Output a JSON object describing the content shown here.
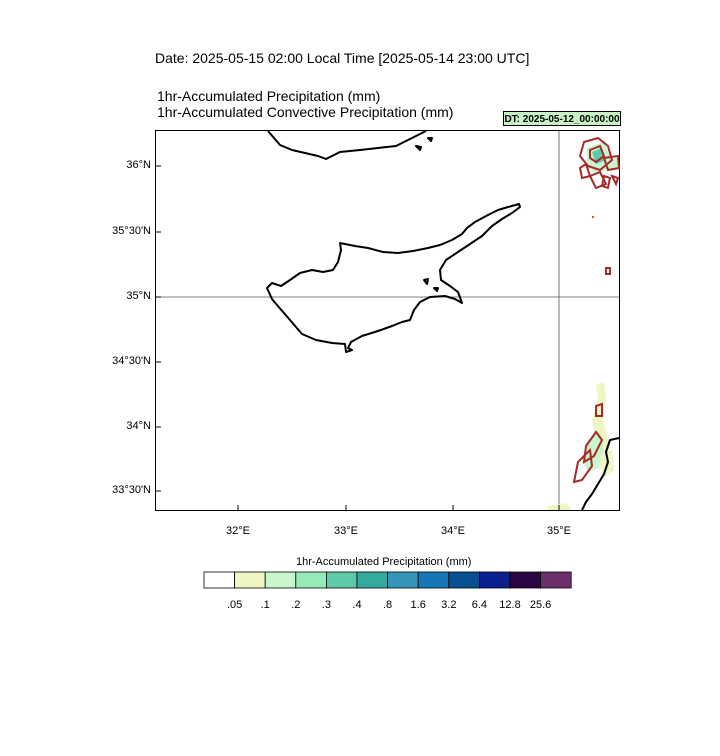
{
  "header": {
    "date_line": "Date: 2025-05-15  02:00 Local Time [2025-05-14  23:00 UTC]",
    "subtitle_1": "1hr-Accumulated Precipitation   (mm)",
    "subtitle_2": "1hr-Accumulated Convective Precipitation   (mm)",
    "dt_badge": "DT: 2025-05-12_00:00:00"
  },
  "map": {
    "lat_labels": [
      "36°N",
      "35°30'N",
      "35°N",
      "34°30'N",
      "34°N",
      "33°30'N"
    ],
    "lon_labels": [
      "32°E",
      "33°E",
      "34°E",
      "35°E"
    ],
    "reference_lines": {
      "latitude": "35°N",
      "longitude": "35°E"
    },
    "coastline_color": "#000000"
  },
  "legend": {
    "title": "1hr-Accumulated Precipitation  (mm)",
    "values": [
      ".05",
      ".1",
      ".2",
      ".3",
      ".4",
      ".8",
      "1.6",
      "3.2",
      "6.4",
      "12.8",
      "25.6"
    ],
    "colors": [
      "#ffffff",
      "#eef7c4",
      "#c9f5cf",
      "#95ebba",
      "#5ccaa8",
      "#32aa9c",
      "#3395b8",
      "#1576b8",
      "#08508f",
      "#0c1f8f",
      "#2b0647",
      "#6b2f6b"
    ]
  },
  "convective_contour_color": "#a52a2a"
}
